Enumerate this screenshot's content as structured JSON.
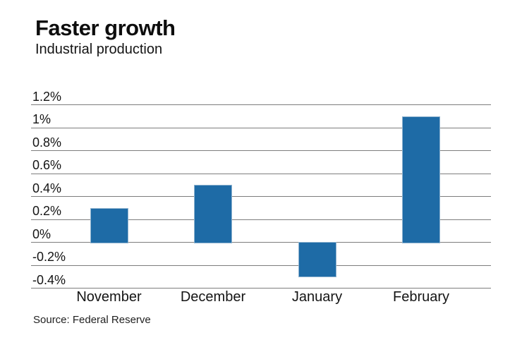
{
  "chart_data": {
    "type": "bar",
    "title": "Faster growth",
    "subtitle": "Industrial production",
    "source": "Source: Federal Reserve",
    "categories": [
      "November",
      "December",
      "January",
      "February"
    ],
    "values": [
      0.3,
      0.5,
      -0.3,
      1.1
    ],
    "unit": "%",
    "tick_values": [
      1.2,
      1.0,
      0.8,
      0.6,
      0.4,
      0.2,
      0,
      -0.2,
      -0.4
    ],
    "tick_labels": [
      "1.2%",
      "1%",
      "0.8%",
      "0.6%",
      "0.4%",
      "0.2%",
      "0%",
      "-0.2%",
      "-0.4%"
    ],
    "ylim": [
      -0.4,
      1.2
    ],
    "grid": true,
    "legend": false,
    "bar_color": "#1e6ba6",
    "bar_edge_color": "#8fb3cf",
    "grid_color": "#7d7d7d",
    "text_color": "#141414"
  }
}
